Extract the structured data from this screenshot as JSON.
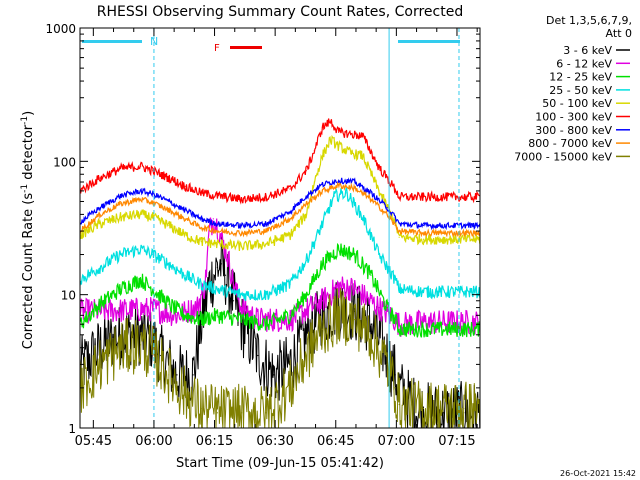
{
  "chart_data": {
    "type": "line",
    "title": "RHESSI Observing Summary Count Rates, Corrected",
    "xlabel": "Start Time (09-Jun-15 05:41:42)",
    "ylabel_main": "Corrected Count Rate (s",
    "ylabel_sup1": "-1",
    "ylabel_mid": " detector",
    "ylabel_sup2": "-1",
    "ylabel_end": ")",
    "y_scale": "log",
    "ylim": [
      1,
      1000
    ],
    "xlim_minutes": [
      0,
      99
    ],
    "x_ticks": [
      {
        "label": "05:45",
        "minutes": 3.3
      },
      {
        "label": "06:00",
        "minutes": 18.3
      },
      {
        "label": "06:15",
        "minutes": 33.3
      },
      {
        "label": "06:30",
        "minutes": 48.3
      },
      {
        "label": "06:45",
        "minutes": 63.3
      },
      {
        "label": "07:00",
        "minutes": 78.3
      },
      {
        "label": "07:15",
        "minutes": 93.3
      }
    ],
    "y_ticks": [
      {
        "label": "1",
        "value": 1
      },
      {
        "label": "10",
        "value": 10
      },
      {
        "label": "100",
        "value": 100
      },
      {
        "label": "1000",
        "value": 1000
      }
    ],
    "legend_header": [
      "Det 1,3,5,6,7,9,",
      "Att 0"
    ],
    "night_markers": [
      "N"
    ],
    "flare_marker": "F",
    "footer_date": "26-Oct-2021 15:42",
    "series": [
      {
        "name": "3 - 6 keV",
        "color": "#000000",
        "x": [
          0,
          5,
          10,
          15,
          18,
          20,
          24,
          28,
          30,
          32,
          34,
          35,
          36,
          38,
          40,
          44,
          48,
          52,
          56,
          60,
          64,
          68,
          72,
          76,
          78,
          79,
          84,
          90,
          95
        ],
        "y": [
          2.8,
          4,
          5,
          5,
          4.5,
          3.5,
          2.5,
          2.5,
          6,
          12,
          16,
          17,
          14,
          9,
          6,
          3.5,
          2.5,
          3,
          5,
          7,
          8,
          7.5,
          6,
          3.5,
          2.5,
          2,
          1.3,
          1.3,
          1.3
        ]
      },
      {
        "name": "6 - 12 keV",
        "color": "#e000e0",
        "x": [
          0,
          10,
          18,
          24,
          29,
          31,
          32,
          33,
          34,
          35,
          36,
          37,
          38,
          40,
          44,
          52,
          60,
          64,
          68,
          74,
          78,
          79,
          85,
          95
        ],
        "y": [
          7.5,
          7.6,
          7.8,
          7,
          8,
          12,
          30,
          37,
          33,
          26,
          22,
          17,
          12,
          8,
          6.5,
          6.5,
          9,
          11.5,
          11,
          8,
          6.5,
          6,
          6.2,
          6.2
        ]
      },
      {
        "name": "12 - 25 keV",
        "color": "#00e000",
        "x": [
          0,
          5,
          10,
          15,
          18,
          22,
          26,
          30,
          34,
          40,
          46,
          52,
          56,
          60,
          64,
          68,
          72,
          76,
          78,
          79,
          85,
          95
        ],
        "y": [
          6,
          8.5,
          11,
          13,
          11,
          8.5,
          7,
          6.5,
          7,
          6.5,
          6,
          7,
          10,
          17,
          22,
          20,
          14,
          8,
          6.5,
          5.5,
          5.5,
          5.5
        ]
      },
      {
        "name": "25 - 50 keV",
        "color": "#00e0e0",
        "x": [
          0,
          5,
          10,
          15,
          18,
          22,
          26,
          30,
          34,
          40,
          46,
          52,
          56,
          60,
          63,
          66,
          70,
          74,
          78,
          79,
          85,
          95
        ],
        "y": [
          13,
          16,
          20,
          22,
          20,
          17,
          14,
          12,
          11,
          10,
          10,
          12,
          18,
          34,
          55,
          58,
          38,
          20,
          13,
          11,
          10.5,
          10.5
        ]
      },
      {
        "name": "50 - 100 keV",
        "color": "#d8d800",
        "x": [
          0,
          5,
          10,
          15,
          18,
          22,
          26,
          30,
          34,
          40,
          46,
          52,
          56,
          58,
          60,
          62,
          64,
          67,
          70,
          74,
          78,
          79,
          85,
          95
        ],
        "y": [
          28,
          34,
          38,
          40,
          38,
          33,
          28,
          25,
          24,
          23,
          24,
          28,
          40,
          70,
          110,
          145,
          130,
          115,
          110,
          60,
          35,
          27,
          26,
          26
        ]
      },
      {
        "name": "100 - 300 keV",
        "color": "#ff0000",
        "x": [
          0,
          5,
          10,
          15,
          18,
          22,
          26,
          30,
          34,
          40,
          46,
          52,
          56,
          58,
          60,
          62,
          64,
          67,
          70,
          74,
          78,
          79,
          85,
          95
        ],
        "y": [
          60,
          75,
          88,
          92,
          85,
          75,
          65,
          58,
          55,
          52,
          54,
          62,
          85,
          120,
          180,
          200,
          165,
          160,
          155,
          90,
          62,
          54,
          54,
          54
        ]
      },
      {
        "name": "300 - 800 keV",
        "color": "#0000ff",
        "x": [
          0,
          5,
          10,
          15,
          18,
          22,
          26,
          30,
          34,
          40,
          46,
          52,
          56,
          60,
          64,
          68,
          72,
          76,
          78,
          79,
          85,
          95
        ],
        "y": [
          35,
          45,
          55,
          60,
          57,
          50,
          43,
          37,
          34,
          33,
          34,
          42,
          55,
          67,
          72,
          70,
          58,
          45,
          38,
          34,
          33,
          33
        ]
      },
      {
        "name": "800 - 7000 keV",
        "color": "#ff8800",
        "x": [
          0,
          5,
          10,
          15,
          18,
          22,
          26,
          30,
          34,
          40,
          46,
          52,
          56,
          60,
          64,
          68,
          72,
          76,
          78,
          79,
          85,
          95
        ],
        "y": [
          30,
          40,
          48,
          52,
          49,
          43,
          37,
          32,
          30,
          29,
          30,
          37,
          48,
          60,
          66,
          63,
          52,
          40,
          33,
          30,
          29,
          29
        ]
      },
      {
        "name": "7000 - 15000 keV",
        "color": "#808000",
        "x": [
          0,
          5,
          10,
          15,
          18,
          22,
          26,
          30,
          34,
          40,
          46,
          52,
          56,
          60,
          64,
          68,
          72,
          76,
          78,
          79,
          85,
          95
        ],
        "y": [
          2,
          3,
          4,
          4.2,
          3.6,
          2.5,
          1.8,
          1.4,
          1.3,
          1.3,
          1.3,
          2,
          3.5,
          5.5,
          7,
          6.5,
          5,
          3,
          2,
          1.5,
          1.4,
          1.4
        ]
      }
    ]
  }
}
